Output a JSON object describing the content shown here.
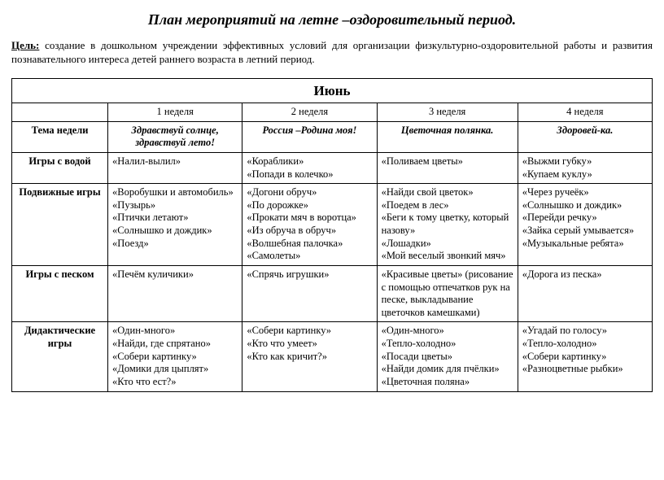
{
  "title": "План мероприятий на летне –оздоровительный период.",
  "goal_label": "Цель:",
  "goal_text": " создание в дошкольном учреждении эффективных условий для организации физкультурно-оздоровительной работы и развития познавательного интереса детей раннего возраста в летний период.",
  "month": "Июнь",
  "weeks": [
    "1 неделя",
    "2 неделя",
    "3 неделя",
    "4 неделя"
  ],
  "rows": {
    "theme": {
      "label": "Тема недели",
      "cells": [
        "Здравствуй солнце, здравствуй лето!",
        "Россия –Родина моя!",
        "Цветочная полянка.",
        "Здоровей-ка."
      ]
    },
    "water": {
      "label": "Игры с водой",
      "cells": [
        "«Налил-вылил»",
        "«Кораблики»\n«Попади в колечко»",
        "«Поливаем цветы»",
        "«Выжми губку»\n«Купаем  куклу»"
      ]
    },
    "active": {
      "label": "Подвижные игры",
      "cells": [
        "«Воробушки и автомобиль»\n«Пузырь»\n «Птички летают»\n«Солнышко и дождик»\n«Поезд»",
        "«Догони обруч»\n«По дорожке»\n«Прокати мяч в воротца»\n«Из обруча в обруч»\n«Волшебная палочка»\n«Самолеты»",
        " «Найди свой цветок»\n «Поедем в лес»\n«Беги к тому цветку, который назову»\n«Лошадки»\n«Мой веселый звонкий мяч»",
        "«Через ручеёк»\n«Солнышко и дождик»\n«Перейди речку»\n«Зайка серый умывается»\n«Музыкальные ребята»"
      ]
    },
    "sand": {
      "label": "Игры с песком",
      "cells": [
        "«Печём куличики»",
        "«Спрячь игрушки»",
        "«Красивые цветы» (рисование с помощью отпечатков рук на песке, выкладывание цветочков камешками)",
        "«Дорога из песка»"
      ]
    },
    "didactic": {
      "label": "Дидактические игры",
      "cells": [
        "«Один-много»\n«Найди, где спрятано»\n«Собери картинку»\n«Домики для цыплят»\n«Кто что ест?»",
        "«Собери картинку»\n«Кто что умеет»\n«Кто как кричит?»",
        "«Один-много»\n«Тепло-холодно»\n«Посади цветы»\n«Найди домик для пчёлки»\n«Цветочная поляна»",
        "«Угадай по голосу»\n«Тепло-холодно»\n«Собери картинку»\n«Разноцветные рыбки»"
      ]
    }
  }
}
